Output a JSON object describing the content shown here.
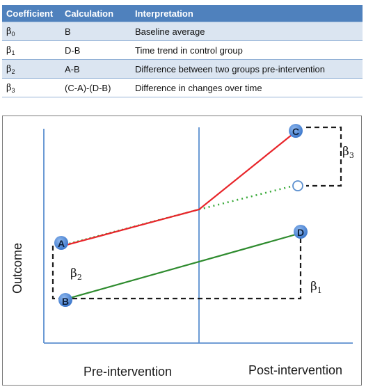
{
  "table": {
    "headers": [
      "Coefficient",
      "Calculation",
      "Interpretation"
    ],
    "rows": [
      {
        "coef_symbol": "β",
        "coef_sub": "0",
        "calculation": "B",
        "interpretation": "Baseline average"
      },
      {
        "coef_symbol": "β",
        "coef_sub": "1",
        "calculation": "D-B",
        "interpretation": "Time trend in control group"
      },
      {
        "coef_symbol": "β",
        "coef_sub": "2",
        "calculation": "A-B",
        "interpretation": "Difference between two groups pre-intervention"
      },
      {
        "coef_symbol": "β",
        "coef_sub": "3",
        "calculation": "(C-A)-(D-B)",
        "interpretation": "Difference in changes over time"
      }
    ]
  },
  "diagram": {
    "y_axis_label": "Outcome",
    "x_label_pre": "Pre-intervention",
    "x_label_post": "Post-intervention",
    "points": {
      "A": "A",
      "B": "B",
      "C": "C",
      "D": "D"
    },
    "beta_labels": {
      "b1": {
        "sym": "β",
        "sub": "1"
      },
      "b2": {
        "sym": "β",
        "sub": "2"
      },
      "b3": {
        "sym": "β",
        "sub": "3"
      }
    },
    "colors": {
      "treatment_line": "#e8252a",
      "control_line": "#2e8b2e",
      "counterfactual_line": "#3aaa3a",
      "axis": "#5b8fcf",
      "point_fill": "#4a86d8",
      "dashed": "#1a1a1a"
    }
  }
}
